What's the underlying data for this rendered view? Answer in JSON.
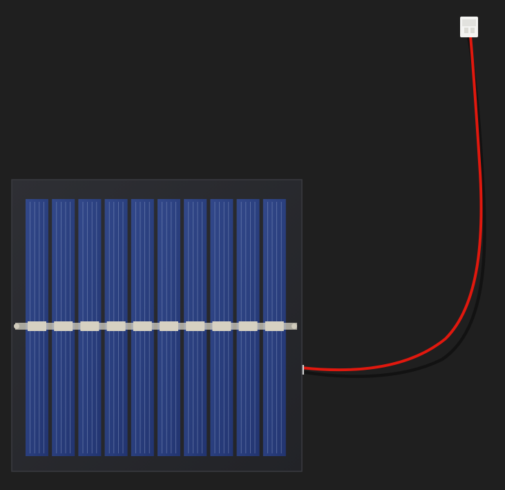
{
  "scene": {
    "subject": "solar-panel-with-jst-connector",
    "colors": {
      "background": "#1f1f1f",
      "frame": "#27282c",
      "cell": "#2a3f7e",
      "cell_dark": "#1c2b5c",
      "finger": "#8fa0c8",
      "busbar": "#d6d1c2",
      "wire_red": "#e0180e",
      "wire_black": "#141414",
      "connector": "#f4f4f2"
    },
    "panel": {
      "cell_count": 10
    }
  }
}
